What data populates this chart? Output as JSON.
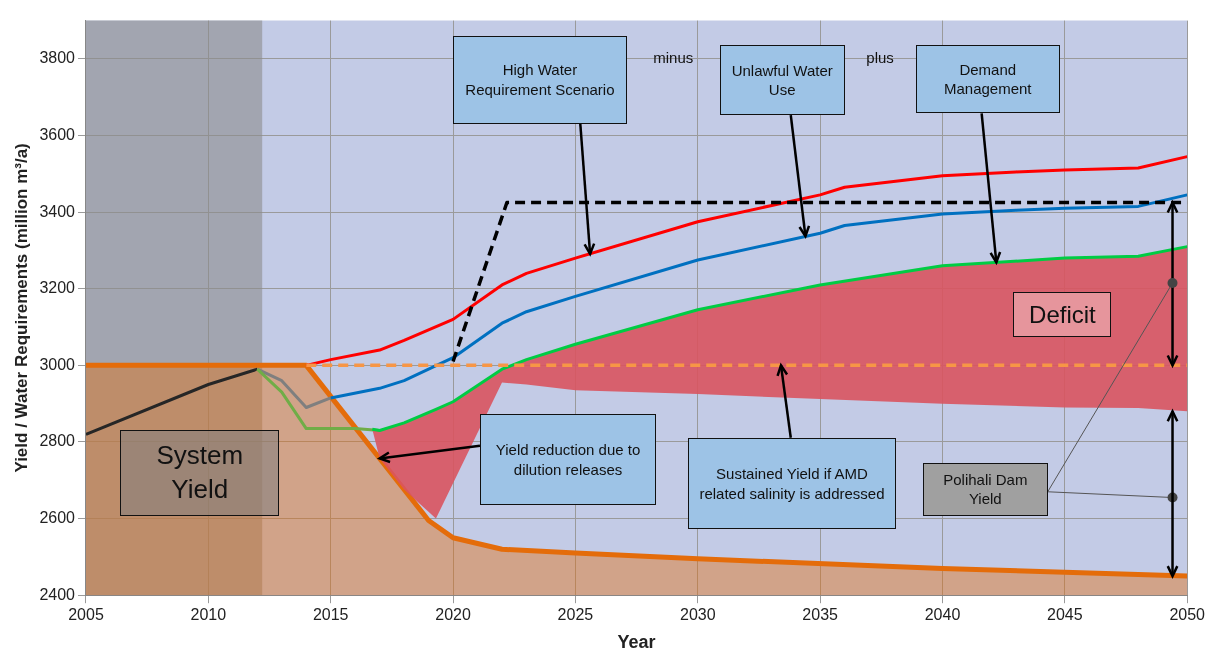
{
  "chart_data": {
    "type": "line",
    "xlabel": "Year",
    "ylabel": "Yield / Water Requirements (million m³/a)",
    "xlim": [
      2005,
      2050
    ],
    "xticks": [
      2005,
      2010,
      2015,
      2020,
      2025,
      2030,
      2035,
      2040,
      2045,
      2050
    ],
    "ylim": [
      2400,
      3900
    ],
    "yticks": [
      2400,
      2600,
      2800,
      3000,
      3200,
      3400,
      3600,
      3800
    ],
    "grid": true,
    "legend": false,
    "bands": [
      {
        "axis": "x",
        "from": 2005,
        "to": 2012.2,
        "color": "#8c8c8c"
      }
    ],
    "series": [
      {
        "type": "area",
        "color": "#e46c0a",
        "x": [
          2005,
          2014,
          2019,
          2020,
          2022,
          2025,
          2030,
          2040,
          2050
        ],
        "values": [
          3000,
          3000,
          2595,
          2550,
          2520,
          2510,
          2495,
          2470,
          2450
        ]
      },
      {
        "color": "#262626",
        "x": [
          2005,
          2010,
          2012
        ],
        "values": [
          2820,
          2950,
          2990
        ]
      },
      {
        "color": "#7f7f7f",
        "x": [
          2012,
          2013,
          2014,
          2015
        ],
        "values": [
          2990,
          2960,
          2890,
          2915
        ]
      },
      {
        "color": "#70ad47",
        "x": [
          2012,
          2013,
          2014,
          2016,
          2017
        ],
        "values": [
          2990,
          2930,
          2835,
          2835,
          2830
        ]
      },
      {
        "color": "#00cc44",
        "x": [
          2016.7,
          2017,
          2018,
          2019.3,
          2020,
          2022,
          2023,
          2025,
          2030,
          2035,
          2040,
          2045,
          2048,
          2050
        ],
        "values": [
          2833,
          2830,
          2850,
          2885,
          2905,
          2990,
          3015,
          3055,
          3145,
          3210,
          3260,
          3280,
          3285,
          3310
        ],
        "lower": [
          2833,
          2757,
          2676,
          2600,
          2692,
          2955,
          2950,
          2935,
          2925,
          2912,
          2900,
          2890,
          2889,
          2880
        ],
        "upper": [
          2833,
          2830,
          2850,
          2885,
          2905,
          2990,
          3015,
          3055,
          3145,
          3210,
          3260,
          3280,
          3285,
          3310
        ]
      },
      {
        "color": "#0070c0",
        "x": [
          2015,
          2017,
          2018,
          2020,
          2022,
          2023,
          2025,
          2030,
          2035,
          2036,
          2040,
          2043,
          2045,
          2048,
          2050
        ],
        "values": [
          2915,
          2940,
          2960,
          3020,
          3110,
          3140,
          3180,
          3275,
          3345,
          3365,
          3395,
          3405,
          3410,
          3415,
          3445
        ]
      },
      {
        "color": "#ff0000",
        "x": [
          2014,
          2015,
          2017,
          2018,
          2020,
          2022,
          2023,
          2025,
          2030,
          2035,
          2036,
          2040,
          2043,
          2045,
          2048,
          2050
        ],
        "values": [
          3000,
          3015,
          3040,
          3065,
          3120,
          3210,
          3240,
          3280,
          3375,
          3445,
          3465,
          3495,
          3505,
          3510,
          3515,
          3545
        ]
      },
      {
        "color": "#000000",
        "line_style": "dashed",
        "x": [
          2020,
          2022.2,
          2050
        ],
        "values": [
          3010,
          3425,
          3425
        ]
      },
      {
        "color": "#f79646",
        "line_style": "dashed",
        "x": [
          2014,
          2050
        ],
        "values": [
          3000,
          3000
        ]
      }
    ],
    "annotations": [
      "High Water Requirement Scenario",
      "minus",
      {
        "text": "Unlawful Water Use",
        "x": 2034.4,
        "y": 3337
      },
      "plus",
      {
        "text": "Demand Management",
        "x": 2042.2,
        "y": 3269
      },
      "Deficit",
      "System Yield",
      {
        "text": "Yield reduction due to dilution releases",
        "x": 2017,
        "y": 2757
      },
      "Sustained Yield if AMD related salinity is addressed",
      "Polihali Dam Yield"
    ]
  }
}
